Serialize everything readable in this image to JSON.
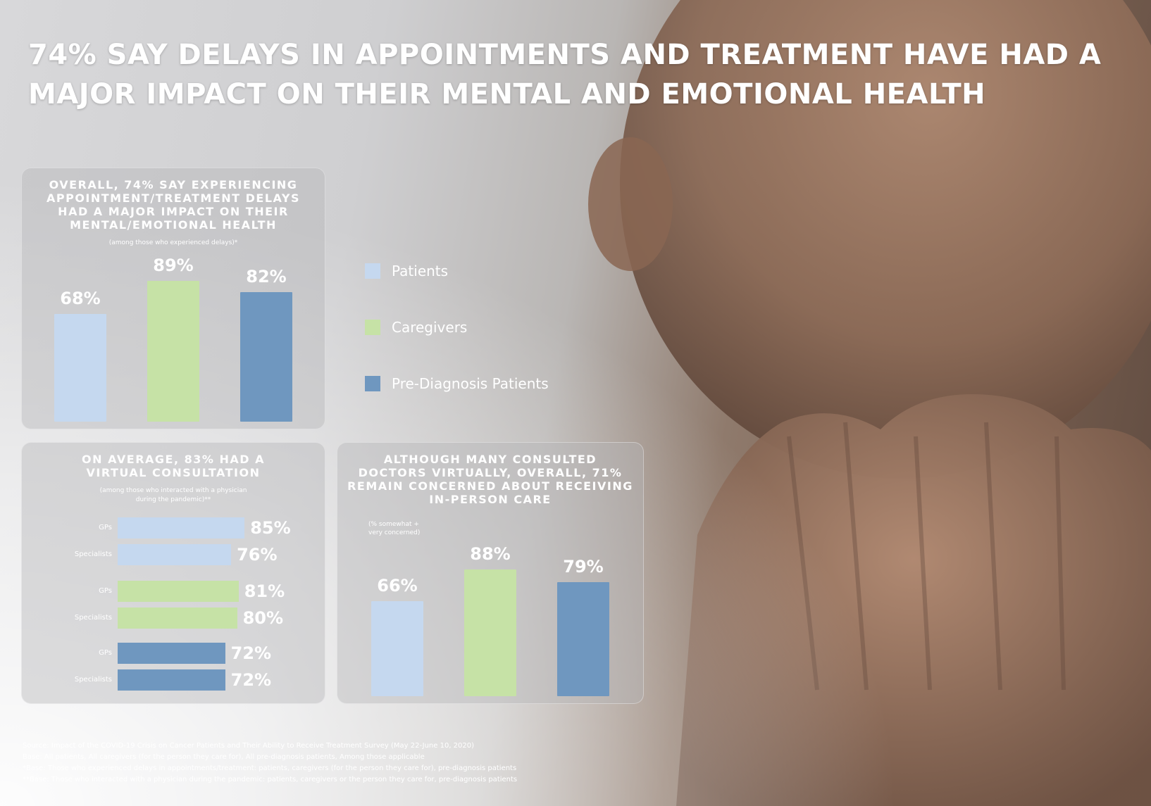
{
  "title": "74% SAY DELAYS IN APPOINTMENTS AND TREATMENT HAVE HAD A MAJOR IMPACT ON THEIR MENTAL AND EMOTIONAL HEALTH",
  "colors": {
    "patients": "#c5d8ef",
    "caregivers": "#c6e2a6",
    "pre_diagnosis": "#6f97bf"
  },
  "legend": [
    {
      "label": "Patients",
      "color": "#c5d8ef"
    },
    {
      "label": "Caregivers",
      "color": "#c6e2a6"
    },
    {
      "label": "Pre-Diagnosis Patients",
      "color": "#6f97bf"
    }
  ],
  "panel_impact": {
    "title_lines": [
      "OVERALL, 74% SAY EXPERIENCING",
      "APPOINTMENT/TREATMENT DELAYS",
      "HAD A MAJOR IMPACT ON THEIR",
      "MENTAL/EMOTIONAL HEALTH"
    ],
    "note": "(among those who experienced delays)*"
  },
  "panel_virtual": {
    "title_lines": [
      "ON AVERAGE, 83% HAD A",
      "VIRTUAL CONSULTATION"
    ],
    "note_lines": [
      "(among those who interacted with a physician",
      "during the pandemic)**"
    ]
  },
  "panel_concern": {
    "title_lines": [
      "ALTHOUGH MANY CONSULTED",
      "DOCTORS VIRTUALLY, OVERALL, 71%",
      "REMAIN CONCERNED ABOUT RECEIVING",
      "IN-PERSON CARE"
    ],
    "note_lines": [
      "(% somewhat +",
      "very concerned)"
    ]
  },
  "footnotes": [
    "Source: Impact of the COVID-19 Crisis on Cancer Patients and Their Ability to Receive Treatment Survey (May 22-June 10, 2020)",
    "Base: All patients, All caregivers (for the person they care for), All pre-diagnosis patients, Among those applicable",
    "*Base: Those who experienced delays in appointments/treatment: patients, caregivers (for the person they care for), pre-diagnosis patients",
    "**Base: Those who interacted with a physician during the pandemic: patients, caregivers or the person they care for, pre-diagnosis patients"
  ],
  "chart_data": [
    {
      "type": "bar",
      "title": "OVERALL, 74% SAY EXPERIENCING APPOINTMENT/TREATMENT DELAYS HAD A MAJOR IMPACT ON THEIR MENTAL/EMOTIONAL HEALTH",
      "categories": [
        "Patients",
        "Caregivers",
        "Pre-Diagnosis Patients"
      ],
      "values": [
        68,
        89,
        82
      ],
      "labels": [
        "68%",
        "89%",
        "82%"
      ],
      "ylim": [
        0,
        100
      ]
    },
    {
      "type": "bar",
      "orientation": "horizontal",
      "title": "ON AVERAGE, 83% HAD A VIRTUAL CONSULTATION",
      "groups": [
        {
          "series": "Patients",
          "rows": [
            {
              "category": "GPs",
              "value": 85,
              "label": "85%"
            },
            {
              "category": "Specialists",
              "value": 76,
              "label": "76%"
            }
          ]
        },
        {
          "series": "Caregivers",
          "rows": [
            {
              "category": "GPs",
              "value": 81,
              "label": "81%"
            },
            {
              "category": "Specialists",
              "value": 80,
              "label": "80%"
            }
          ]
        },
        {
          "series": "Pre-Diagnosis Patients",
          "rows": [
            {
              "category": "GPs",
              "value": 72,
              "label": "72%"
            },
            {
              "category": "Specialists",
              "value": 72,
              "label": "72%"
            }
          ]
        }
      ],
      "xlim": [
        0,
        100
      ]
    },
    {
      "type": "bar",
      "title": "ALTHOUGH MANY CONSULTED DOCTORS VIRTUALLY, OVERALL, 71% REMAIN CONCERNED ABOUT RECEIVING IN-PERSON CARE",
      "categories": [
        "Patients",
        "Caregivers",
        "Pre-Diagnosis Patients"
      ],
      "values": [
        66,
        88,
        79
      ],
      "labels": [
        "66%",
        "88%",
        "79%"
      ],
      "ylim": [
        0,
        100
      ]
    }
  ]
}
